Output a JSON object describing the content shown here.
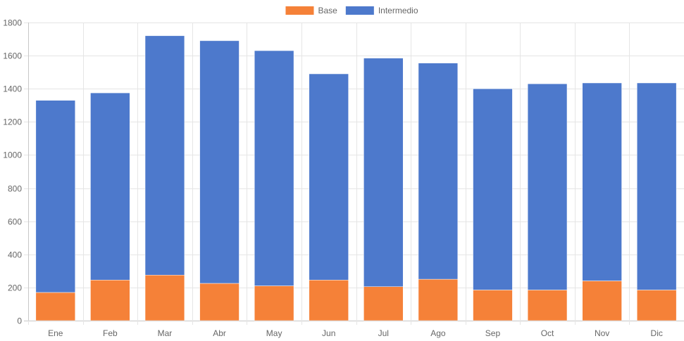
{
  "chart_data": {
    "type": "bar",
    "stacked": true,
    "categories": [
      "Ene",
      "Feb",
      "Mar",
      "Abr",
      "May",
      "Jun",
      "Jul",
      "Ago",
      "Sep",
      "Oct",
      "Nov",
      "Dic"
    ],
    "series": [
      {
        "name": "Base",
        "color": "#f58138",
        "values": [
          170,
          245,
          275,
          225,
          210,
          245,
          205,
          250,
          185,
          185,
          240,
          185
        ]
      },
      {
        "name": "Intermedio",
        "color": "#4d79cc",
        "values": [
          1160,
          1130,
          1445,
          1465,
          1420,
          1245,
          1380,
          1305,
          1215,
          1245,
          1195,
          1250
        ]
      }
    ],
    "ylim": [
      0,
      1800
    ],
    "yticks": [
      "0",
      "200",
      "400",
      "600",
      "800",
      "1000",
      "1200",
      "1400",
      "1600",
      "1800"
    ],
    "legend_position": "top",
    "grid": true
  }
}
